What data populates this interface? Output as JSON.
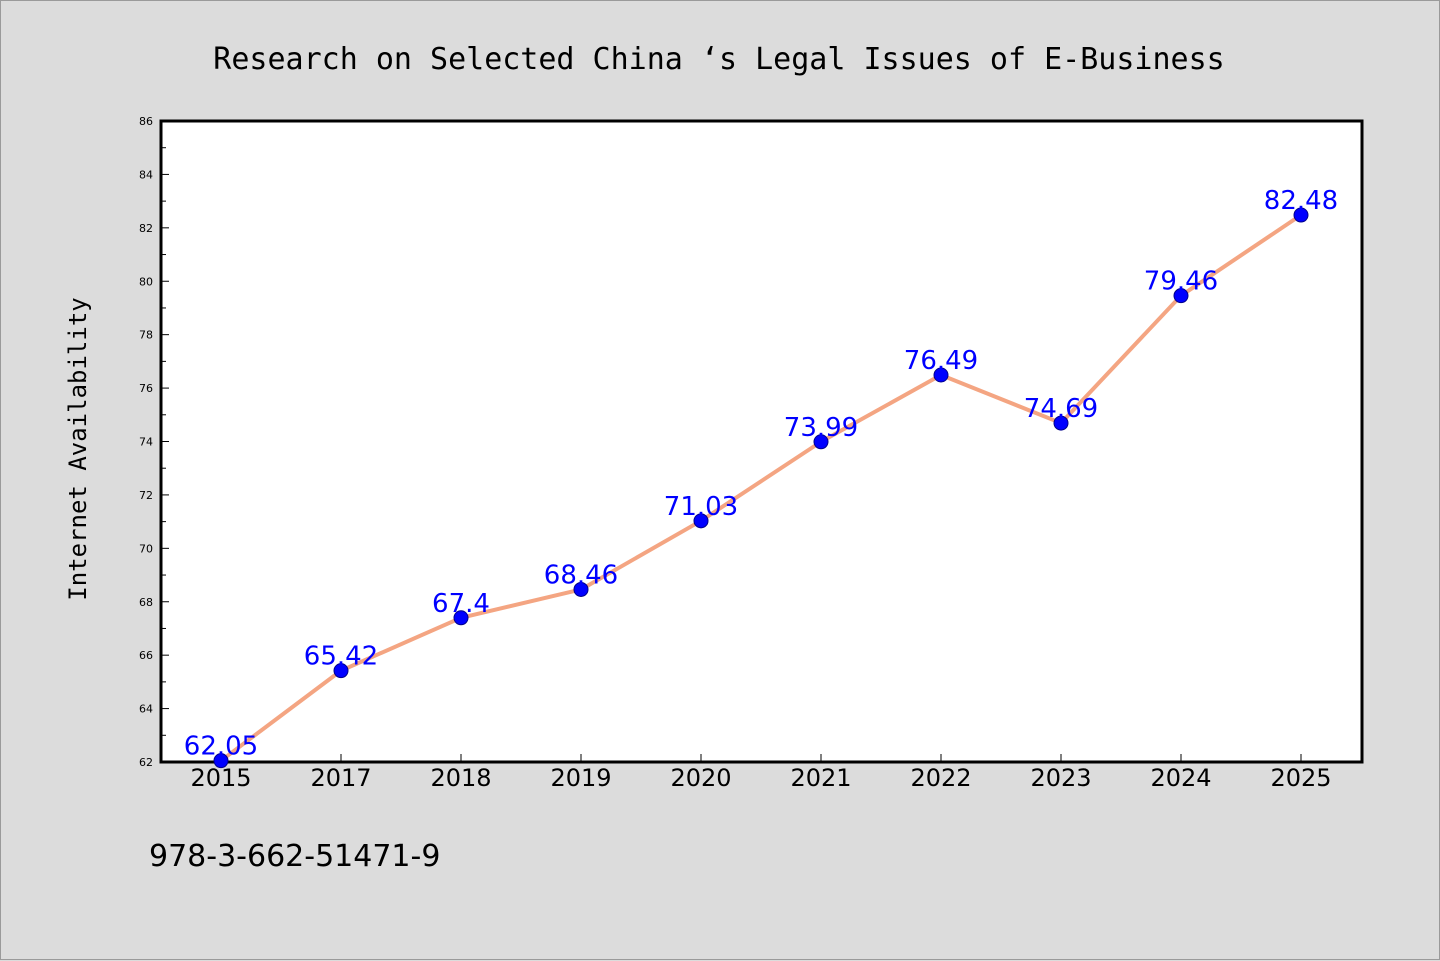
{
  "chart_data": {
    "type": "line",
    "title": "Research on Selected China ‘s Legal Issues of E-Business",
    "xlabel": "",
    "ylabel": "Internet Availability",
    "categories": [
      "2015",
      "2017",
      "2018",
      "2019",
      "2020",
      "2021",
      "2022",
      "2023",
      "2024",
      "2025"
    ],
    "series": [
      {
        "values": [
          62.05,
          65.42,
          67.4,
          68.46,
          71.03,
          73.99,
          76.49,
          74.69,
          79.46,
          82.48
        ]
      }
    ],
    "data_labels": [
      "62.05",
      "65.42",
      "67.4",
      "68.46",
      "71.03",
      "73.99",
      "76.49",
      "74.69",
      "79.46",
      "82.48"
    ],
    "ylim": [
      62,
      86
    ],
    "yticks": [
      "62",
      "64",
      "66",
      "68",
      "70",
      "72",
      "74",
      "76",
      "78",
      "80",
      "82",
      "84",
      "86"
    ],
    "grid": false,
    "legend": "none",
    "colors": {
      "line": "#f4a582",
      "marker_fill": "#0000ff",
      "marker_stroke": "#00008b",
      "data_label": "#0000ff",
      "background": "#dcdcdc",
      "plot_background": "#ffffff"
    }
  },
  "footer": {
    "isbn": "978-3-662-51471-9"
  }
}
